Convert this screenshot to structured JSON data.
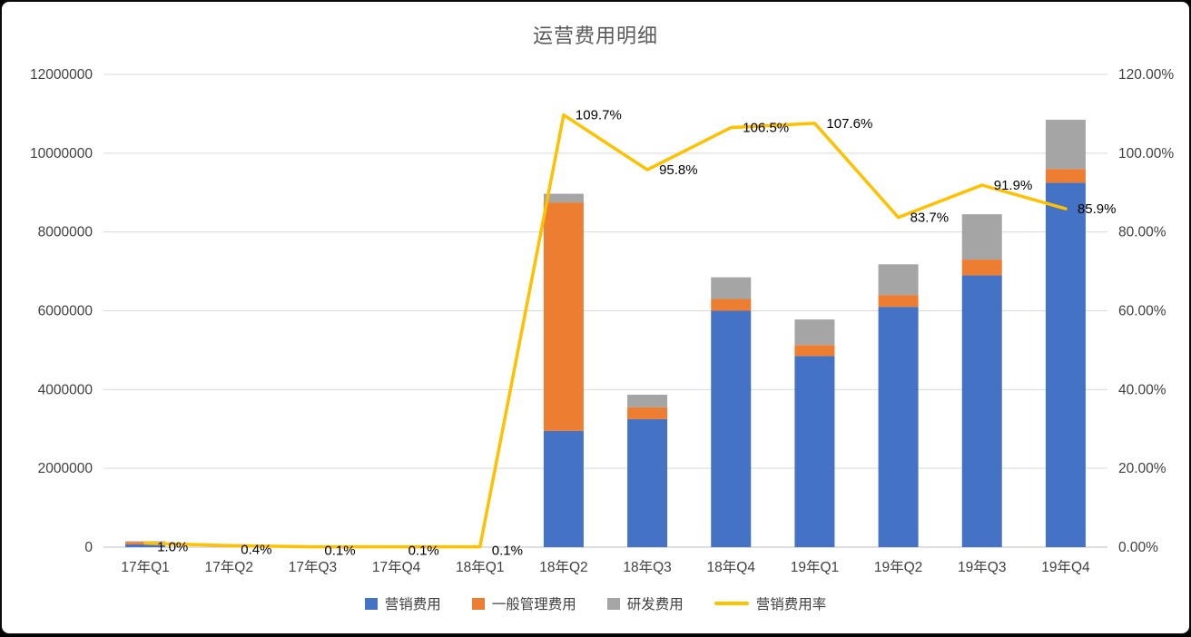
{
  "window": {
    "background": "#000000",
    "panel_background": "#FFFFFF"
  },
  "chart_data": {
    "type": "combo",
    "title": "运营费用明细",
    "legend_position": "bottom",
    "grid": true,
    "categories": [
      "17年Q1",
      "17年Q2",
      "17年Q3",
      "17年Q4",
      "18年Q1",
      "18年Q2",
      "18年Q3",
      "18年Q4",
      "19年Q1",
      "19年Q2",
      "19年Q3",
      "19年Q4"
    ],
    "series": [
      {
        "name": "营销费用",
        "type": "bar",
        "stacked": true,
        "color": "#4472C4",
        "values": [
          70000,
          0,
          0,
          0,
          0,
          2950000,
          3250000,
          6000000,
          4850000,
          6100000,
          6900000,
          9250000
        ]
      },
      {
        "name": "一般管理费用",
        "type": "bar",
        "stacked": true,
        "color": "#ED7D31",
        "values": [
          60000,
          0,
          0,
          0,
          0,
          5800000,
          300000,
          300000,
          280000,
          300000,
          400000,
          350000
        ]
      },
      {
        "name": "研发费用",
        "type": "bar",
        "stacked": true,
        "color": "#A5A5A5",
        "values": [
          20000,
          0,
          0,
          0,
          0,
          220000,
          320000,
          550000,
          650000,
          780000,
          1150000,
          1250000
        ]
      }
    ],
    "line_series": {
      "name": "营销费用率",
      "type": "line",
      "axis": "right",
      "color": "#FFC000",
      "values": [
        1.0,
        0.4,
        0.1,
        0.1,
        0.1,
        109.7,
        95.8,
        106.5,
        107.6,
        83.7,
        91.9,
        85.9
      ],
      "labels": [
        "1.0%",
        "0.4%",
        "0.1%",
        "0.1%",
        "0.1%",
        "109.7%",
        "95.8%",
        "106.5%",
        "107.6%",
        "83.7%",
        "91.9%",
        "85.9%"
      ]
    },
    "left_axis": {
      "min": 0,
      "max": 12000000,
      "tick_labels": [
        "0",
        "2000000",
        "4000000",
        "6000000",
        "8000000",
        "10000000",
        "12000000"
      ]
    },
    "right_axis": {
      "min": 0,
      "max": 120,
      "tick_labels": [
        "0.00%",
        "20.00%",
        "40.00%",
        "60.00%",
        "80.00%",
        "100.00%",
        "120.00%"
      ]
    },
    "text_colors": {
      "title": "#595959",
      "axis": "#404040",
      "data_label": "#000000",
      "gridline": "#D9D9D9",
      "axis_line": "#BFBFBF"
    }
  }
}
